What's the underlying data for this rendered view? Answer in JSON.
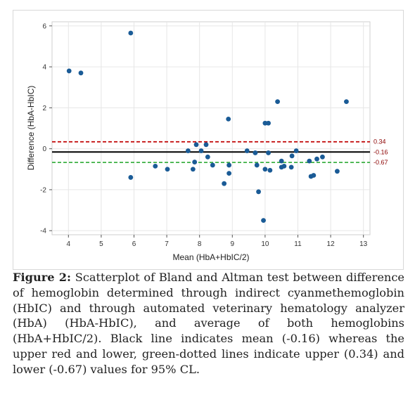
{
  "figure": {
    "label": "Figure 2:",
    "caption": "Scatterplot of Bland and Altman test between difference of hemoglobin determined through indirect cyanmethemoglobin (HbIC) and through automated veterinary hematology analyzer (HbA) (HbA-HbIC), and average of both hemoglobins (HbA+HbIC/2). Black line indicates mean (-0.16) whereas the upper red and lower, green-dotted lines indicate upper (0.34) and lower (-0.67) values for 95% CL."
  },
  "chart_data": {
    "type": "scatter",
    "xlabel": "Mean (HbA+HbIC/2)",
    "ylabel": "Difference (HbA-HbIC)",
    "xlim": [
      3.5,
      13.2
    ],
    "ylim": [
      -4.2,
      6.2
    ],
    "xticks": [
      4,
      5,
      6,
      7,
      8,
      9,
      10,
      11,
      12,
      13
    ],
    "yticks": [
      -4,
      -2,
      0,
      2,
      4,
      6
    ],
    "grid": true,
    "point_color": "#1a5b96",
    "points": [
      {
        "x": 4.02,
        "y": 3.8
      },
      {
        "x": 4.38,
        "y": 3.7
      },
      {
        "x": 5.9,
        "y": 5.65
      },
      {
        "x": 5.9,
        "y": -1.4
      },
      {
        "x": 6.65,
        "y": -0.85
      },
      {
        "x": 7.02,
        "y": -1.0
      },
      {
        "x": 7.65,
        "y": -0.1
      },
      {
        "x": 7.8,
        "y": -1.0
      },
      {
        "x": 7.85,
        "y": -0.65
      },
      {
        "x": 7.9,
        "y": 0.2
      },
      {
        "x": 8.05,
        "y": -0.1
      },
      {
        "x": 8.2,
        "y": 0.2
      },
      {
        "x": 8.25,
        "y": -0.4
      },
      {
        "x": 8.4,
        "y": -0.8
      },
      {
        "x": 8.75,
        "y": -1.7
      },
      {
        "x": 8.88,
        "y": 1.45
      },
      {
        "x": 8.9,
        "y": -0.8
      },
      {
        "x": 8.9,
        "y": -1.2
      },
      {
        "x": 9.45,
        "y": -0.1
      },
      {
        "x": 9.7,
        "y": -0.2
      },
      {
        "x": 9.75,
        "y": -0.8
      },
      {
        "x": 9.8,
        "y": -2.1
      },
      {
        "x": 9.95,
        "y": -3.5
      },
      {
        "x": 10.0,
        "y": 1.25
      },
      {
        "x": 10.0,
        "y": -1.0
      },
      {
        "x": 10.1,
        "y": 1.25
      },
      {
        "x": 10.1,
        "y": -0.2
      },
      {
        "x": 10.15,
        "y": -1.05
      },
      {
        "x": 10.38,
        "y": 2.3
      },
      {
        "x": 10.5,
        "y": -0.9
      },
      {
        "x": 10.5,
        "y": -0.6
      },
      {
        "x": 10.58,
        "y": -0.85
      },
      {
        "x": 10.8,
        "y": -0.9
      },
      {
        "x": 10.82,
        "y": -0.35
      },
      {
        "x": 10.95,
        "y": -0.1
      },
      {
        "x": 11.35,
        "y": -0.6
      },
      {
        "x": 11.4,
        "y": -1.35
      },
      {
        "x": 11.48,
        "y": -1.3
      },
      {
        "x": 11.58,
        "y": -0.5
      },
      {
        "x": 11.75,
        "y": -0.4
      },
      {
        "x": 12.2,
        "y": -1.1
      },
      {
        "x": 12.48,
        "y": 2.3
      }
    ],
    "reference_lines": [
      {
        "value": 0.34,
        "label": "0.34",
        "color": "#c00000",
        "style": "dashed"
      },
      {
        "value": -0.16,
        "label": "-0.16",
        "color": "#000000",
        "style": "solid"
      },
      {
        "value": -0.67,
        "label": "-0.67",
        "color": "#3cb043",
        "style": "dashed"
      }
    ],
    "ref_label_color": "#8b0000"
  }
}
